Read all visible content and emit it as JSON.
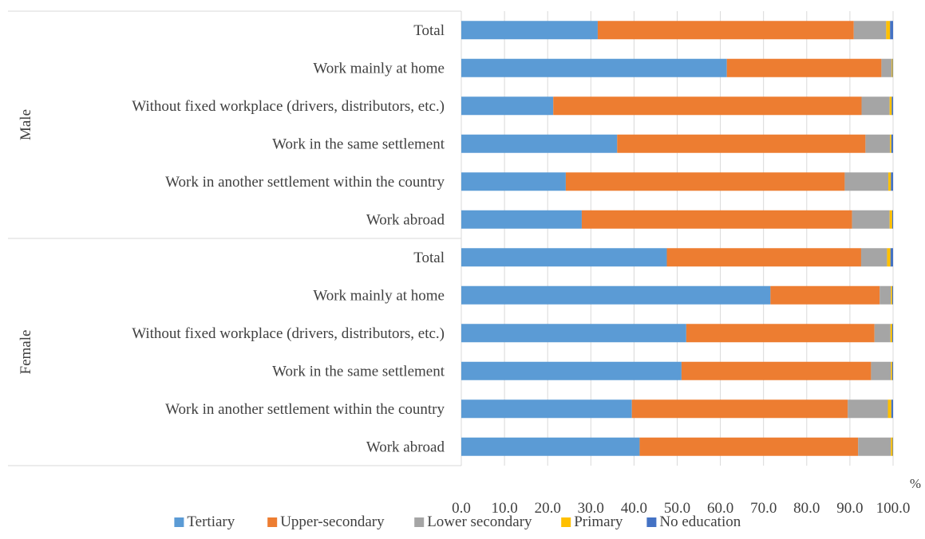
{
  "chart_data": {
    "type": "bar",
    "orientation": "horizontal",
    "stacked": true,
    "unit": "%",
    "xlim": [
      0,
      100
    ],
    "x_ticks": [
      "0.0",
      "10.0",
      "20.0",
      "30.0",
      "40.0",
      "50.0",
      "60.0",
      "70.0",
      "80.0",
      "90.0",
      "100.0"
    ],
    "grid": true,
    "legend_position": "bottom",
    "groups": [
      {
        "name": "Male",
        "categories": [
          "Total",
          "Work mainly at home",
          "Without fixed workplace (drivers, distributors, etc.)",
          "Work in the same settlement",
          "Work in another settlement within the country",
          "Work abroad"
        ]
      },
      {
        "name": "Female",
        "categories": [
          "Total",
          "Work mainly at home",
          "Without fixed workplace (drivers, distributors, etc.)",
          "Work in the same settlement",
          "Work in another settlement within the country",
          "Work abroad"
        ]
      }
    ],
    "series": [
      {
        "name": "Tertiary",
        "color": "#5b9bd5",
        "values": [
          31.6,
          61.5,
          21.3,
          36.1,
          24.2,
          27.9,
          47.6,
          71.6,
          52.1,
          51.0,
          39.5,
          41.3
        ]
      },
      {
        "name": "Upper-secondary",
        "color": "#ed7d31",
        "values": [
          59.3,
          35.8,
          71.4,
          57.5,
          64.6,
          62.6,
          45.0,
          25.3,
          43.6,
          43.9,
          50.0,
          50.6
        ]
      },
      {
        "name": "Lower secondary",
        "color": "#a5a5a5",
        "values": [
          7.5,
          2.4,
          6.5,
          5.7,
          10.1,
          8.7,
          6.0,
          2.6,
          3.7,
          4.6,
          9.3,
          7.6
        ]
      },
      {
        "name": "Primary",
        "color": "#ffc000",
        "values": [
          0.9,
          0.2,
          0.5,
          0.3,
          0.6,
          0.6,
          0.8,
          0.3,
          0.4,
          0.3,
          0.8,
          0.4
        ]
      },
      {
        "name": "No education",
        "color": "#4472c4",
        "values": [
          0.7,
          0.1,
          0.3,
          0.4,
          0.5,
          0.2,
          0.6,
          0.2,
          0.2,
          0.2,
          0.4,
          0.1
        ]
      }
    ]
  }
}
